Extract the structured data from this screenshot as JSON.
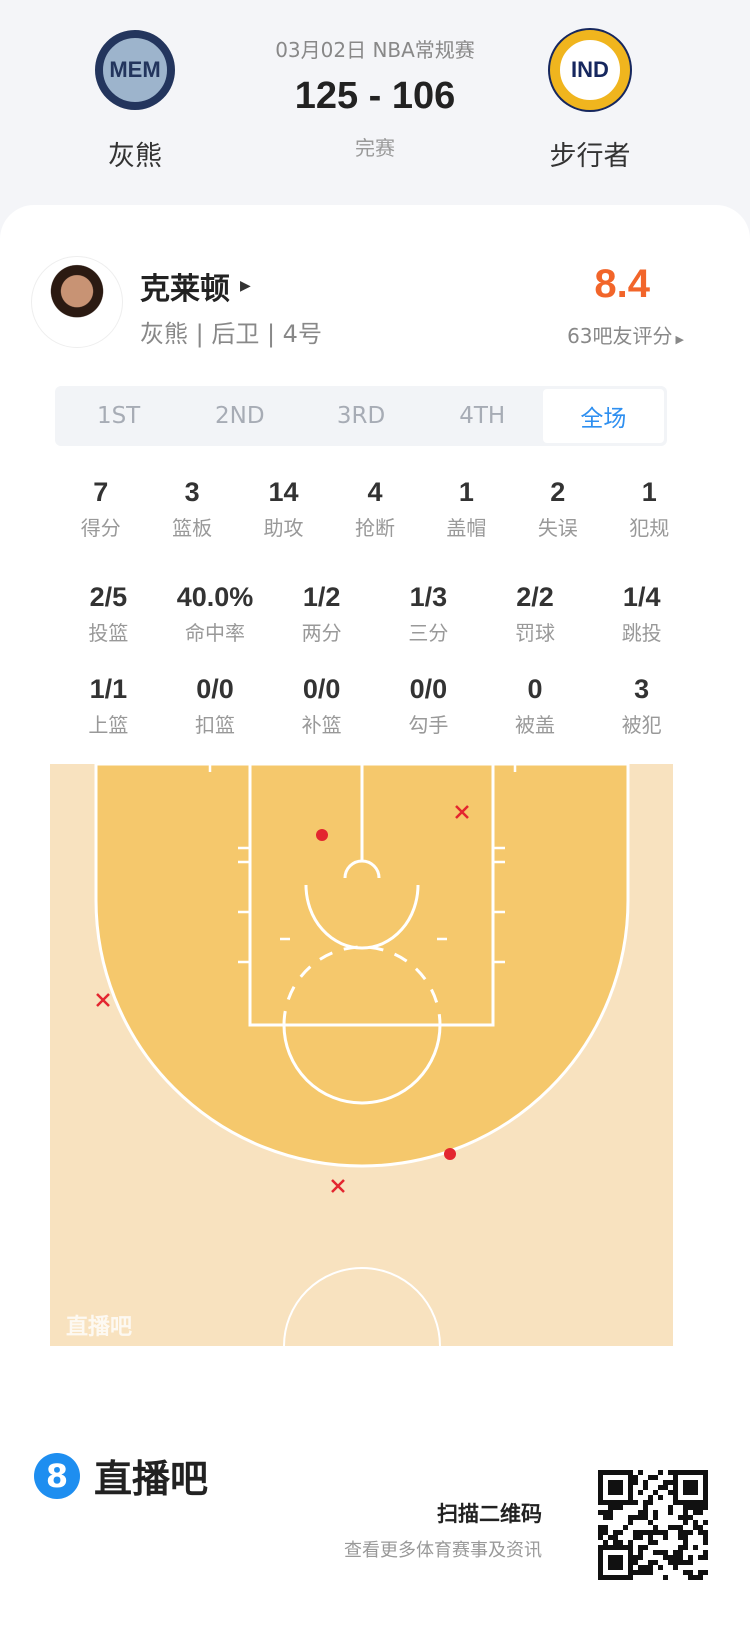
{
  "match": {
    "date_league": "03月02日 NBA常规赛",
    "score": "125 - 106",
    "status": "完赛",
    "home": {
      "abbr": "MEM",
      "name": "灰熊"
    },
    "away": {
      "abbr": "IND",
      "name": "步行者"
    }
  },
  "player": {
    "name": "克莱顿",
    "info": "灰熊 | 后卫 | 4号",
    "rating": "8.4",
    "rating_count": "63吧友评分",
    "rating_color": "#f2652a"
  },
  "tabs": [
    {
      "label": "1ST"
    },
    {
      "label": "2ND"
    },
    {
      "label": "3RD"
    },
    {
      "label": "4TH"
    },
    {
      "label": "全场",
      "active": true
    }
  ],
  "stats_main": [
    {
      "v": "7",
      "l": "得分"
    },
    {
      "v": "3",
      "l": "篮板"
    },
    {
      "v": "14",
      "l": "助攻"
    },
    {
      "v": "4",
      "l": "抢断"
    },
    {
      "v": "1",
      "l": "盖帽"
    },
    {
      "v": "2",
      "l": "失误"
    },
    {
      "v": "1",
      "l": "犯规"
    }
  ],
  "stats_shoot": [
    {
      "v": "2/5",
      "l": "投篮"
    },
    {
      "v": "40.0%",
      "l": "命中率"
    },
    {
      "v": "1/2",
      "l": "两分"
    },
    {
      "v": "1/3",
      "l": "三分"
    },
    {
      "v": "2/2",
      "l": "罚球"
    },
    {
      "v": "1/4",
      "l": "跳投"
    }
  ],
  "stats_more": [
    {
      "v": "1/1",
      "l": "上篮"
    },
    {
      "v": "0/0",
      "l": "扣篮"
    },
    {
      "v": "0/0",
      "l": "补篮"
    },
    {
      "v": "0/0",
      "l": "勾手"
    },
    {
      "v": "0",
      "l": "被盖"
    },
    {
      "v": "3",
      "l": "被犯"
    }
  ],
  "court": {
    "watermark": "直播吧",
    "shots": [
      {
        "result": "made",
        "zone": "paint-left"
      },
      {
        "result": "missed",
        "zone": "paint-right"
      },
      {
        "result": "missed",
        "zone": "left-wing-three"
      },
      {
        "result": "missed",
        "zone": "top-three"
      },
      {
        "result": "made",
        "zone": "right-wing-three"
      }
    ]
  },
  "footer": {
    "brand": "直播吧",
    "scan": "扫描二维码",
    "sub": "查看更多体育赛事及资讯"
  }
}
